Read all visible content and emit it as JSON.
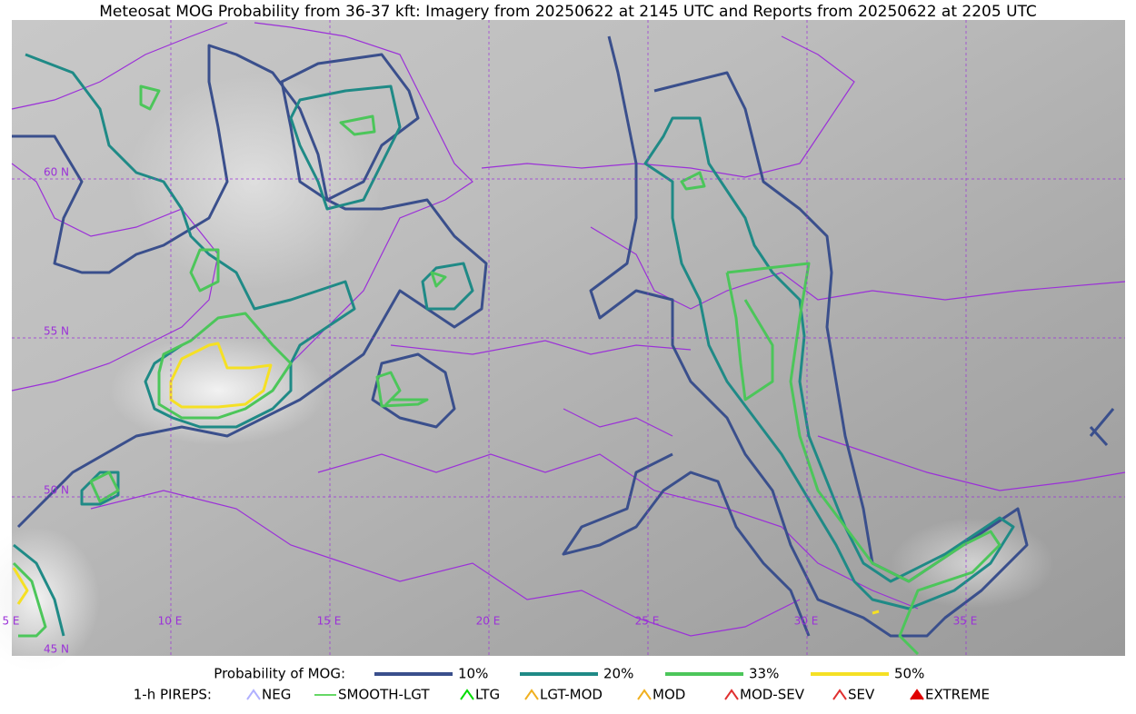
{
  "title": "Meteosat MOG Probability from 36-37 kft: Imagery from 20250622 at 2145 UTC and Reports from 20250622 at 2205 UTC",
  "map": {
    "lon_labels": [
      "5 E",
      "10 E",
      "15 E",
      "20 E",
      "25 E",
      "30 E",
      "35 E"
    ],
    "lat_labels": [
      "60 N",
      "55 N",
      "50 N",
      "45 N"
    ]
  },
  "legend": {
    "probability": {
      "title": "Probability of MOG:",
      "items": [
        {
          "label": "10%",
          "color": "#3a4f8c"
        },
        {
          "label": "20%",
          "color": "#1f8a86"
        },
        {
          "label": "33%",
          "color": "#4cc65a"
        },
        {
          "label": "50%",
          "color": "#f5e024"
        }
      ]
    },
    "pireps": {
      "title": "1-h PIREPS:",
      "items": [
        {
          "label": "NEG",
          "color": "#b0b0ff"
        },
        {
          "label": "SMOOTH-LGT",
          "color": "#33cc33"
        },
        {
          "label": "LTG",
          "color": "#00dd00"
        },
        {
          "label": "LGT-MOD",
          "color": "#f0b020"
        },
        {
          "label": "MOD",
          "color": "#f0b020"
        },
        {
          "label": "MOD-SEV",
          "color": "#e03030"
        },
        {
          "label": "SEV",
          "color": "#e03030"
        },
        {
          "label": "EXTREME",
          "color": "#e00000"
        }
      ]
    }
  }
}
